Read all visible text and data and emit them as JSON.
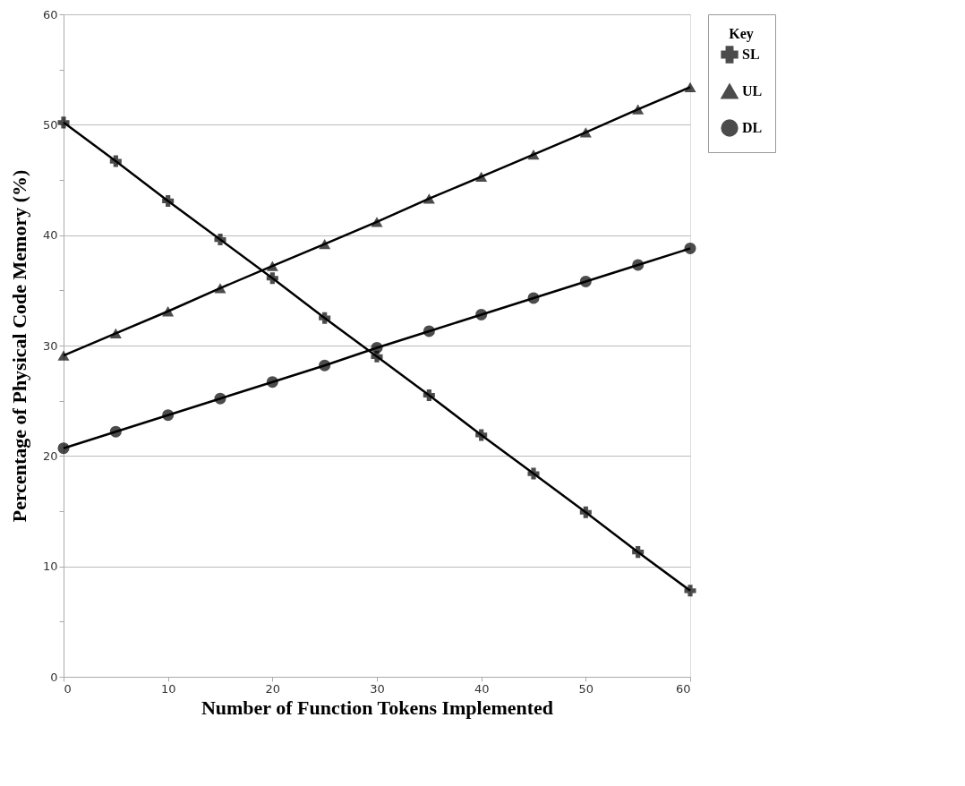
{
  "chart_data": {
    "type": "line",
    "xlabel": "Number of Function Tokens Implemented",
    "ylabel": "Percentage of Physical Code Memory (%)",
    "legend_title": "Key",
    "x": [
      0,
      5,
      10,
      15,
      20,
      25,
      30,
      35,
      40,
      45,
      50,
      55,
      60
    ],
    "series": [
      {
        "name": "SL",
        "color": "#000000",
        "marker": "cross",
        "values": [
          50.2,
          46.7,
          43.1,
          39.6,
          36.1,
          32.5,
          29.0,
          25.5,
          21.9,
          18.4,
          14.9,
          11.3,
          7.8
        ]
      },
      {
        "name": "UL",
        "color": "#000000",
        "marker": "triangle",
        "values": [
          29.1,
          31.1,
          33.1,
          35.2,
          37.2,
          39.2,
          41.2,
          43.3,
          45.3,
          47.3,
          49.3,
          51.4,
          53.4
        ]
      },
      {
        "name": "DL",
        "color": "#000000",
        "marker": "circle",
        "values": [
          20.7,
          22.2,
          23.7,
          25.2,
          26.7,
          28.2,
          29.8,
          31.3,
          32.8,
          34.3,
          35.8,
          37.3,
          38.8
        ]
      }
    ],
    "xlim": [
      0,
      60
    ],
    "xticks": [
      0,
      10,
      20,
      30,
      40,
      50,
      60
    ],
    "ylim": [
      0,
      60
    ],
    "yticks": [
      0,
      {
        "value": 5,
        "label": null
      },
      10,
      {
        "value": 15,
        "label": null
      },
      20,
      {
        "value": 25,
        "label": null
      },
      30,
      {
        "value": 35,
        "label": null
      },
      40,
      {
        "value": 45,
        "label": null
      },
      50,
      {
        "value": 55,
        "label": null
      },
      60
    ],
    "grid": "y",
    "legend": "right",
    "line_style": "solid"
  }
}
